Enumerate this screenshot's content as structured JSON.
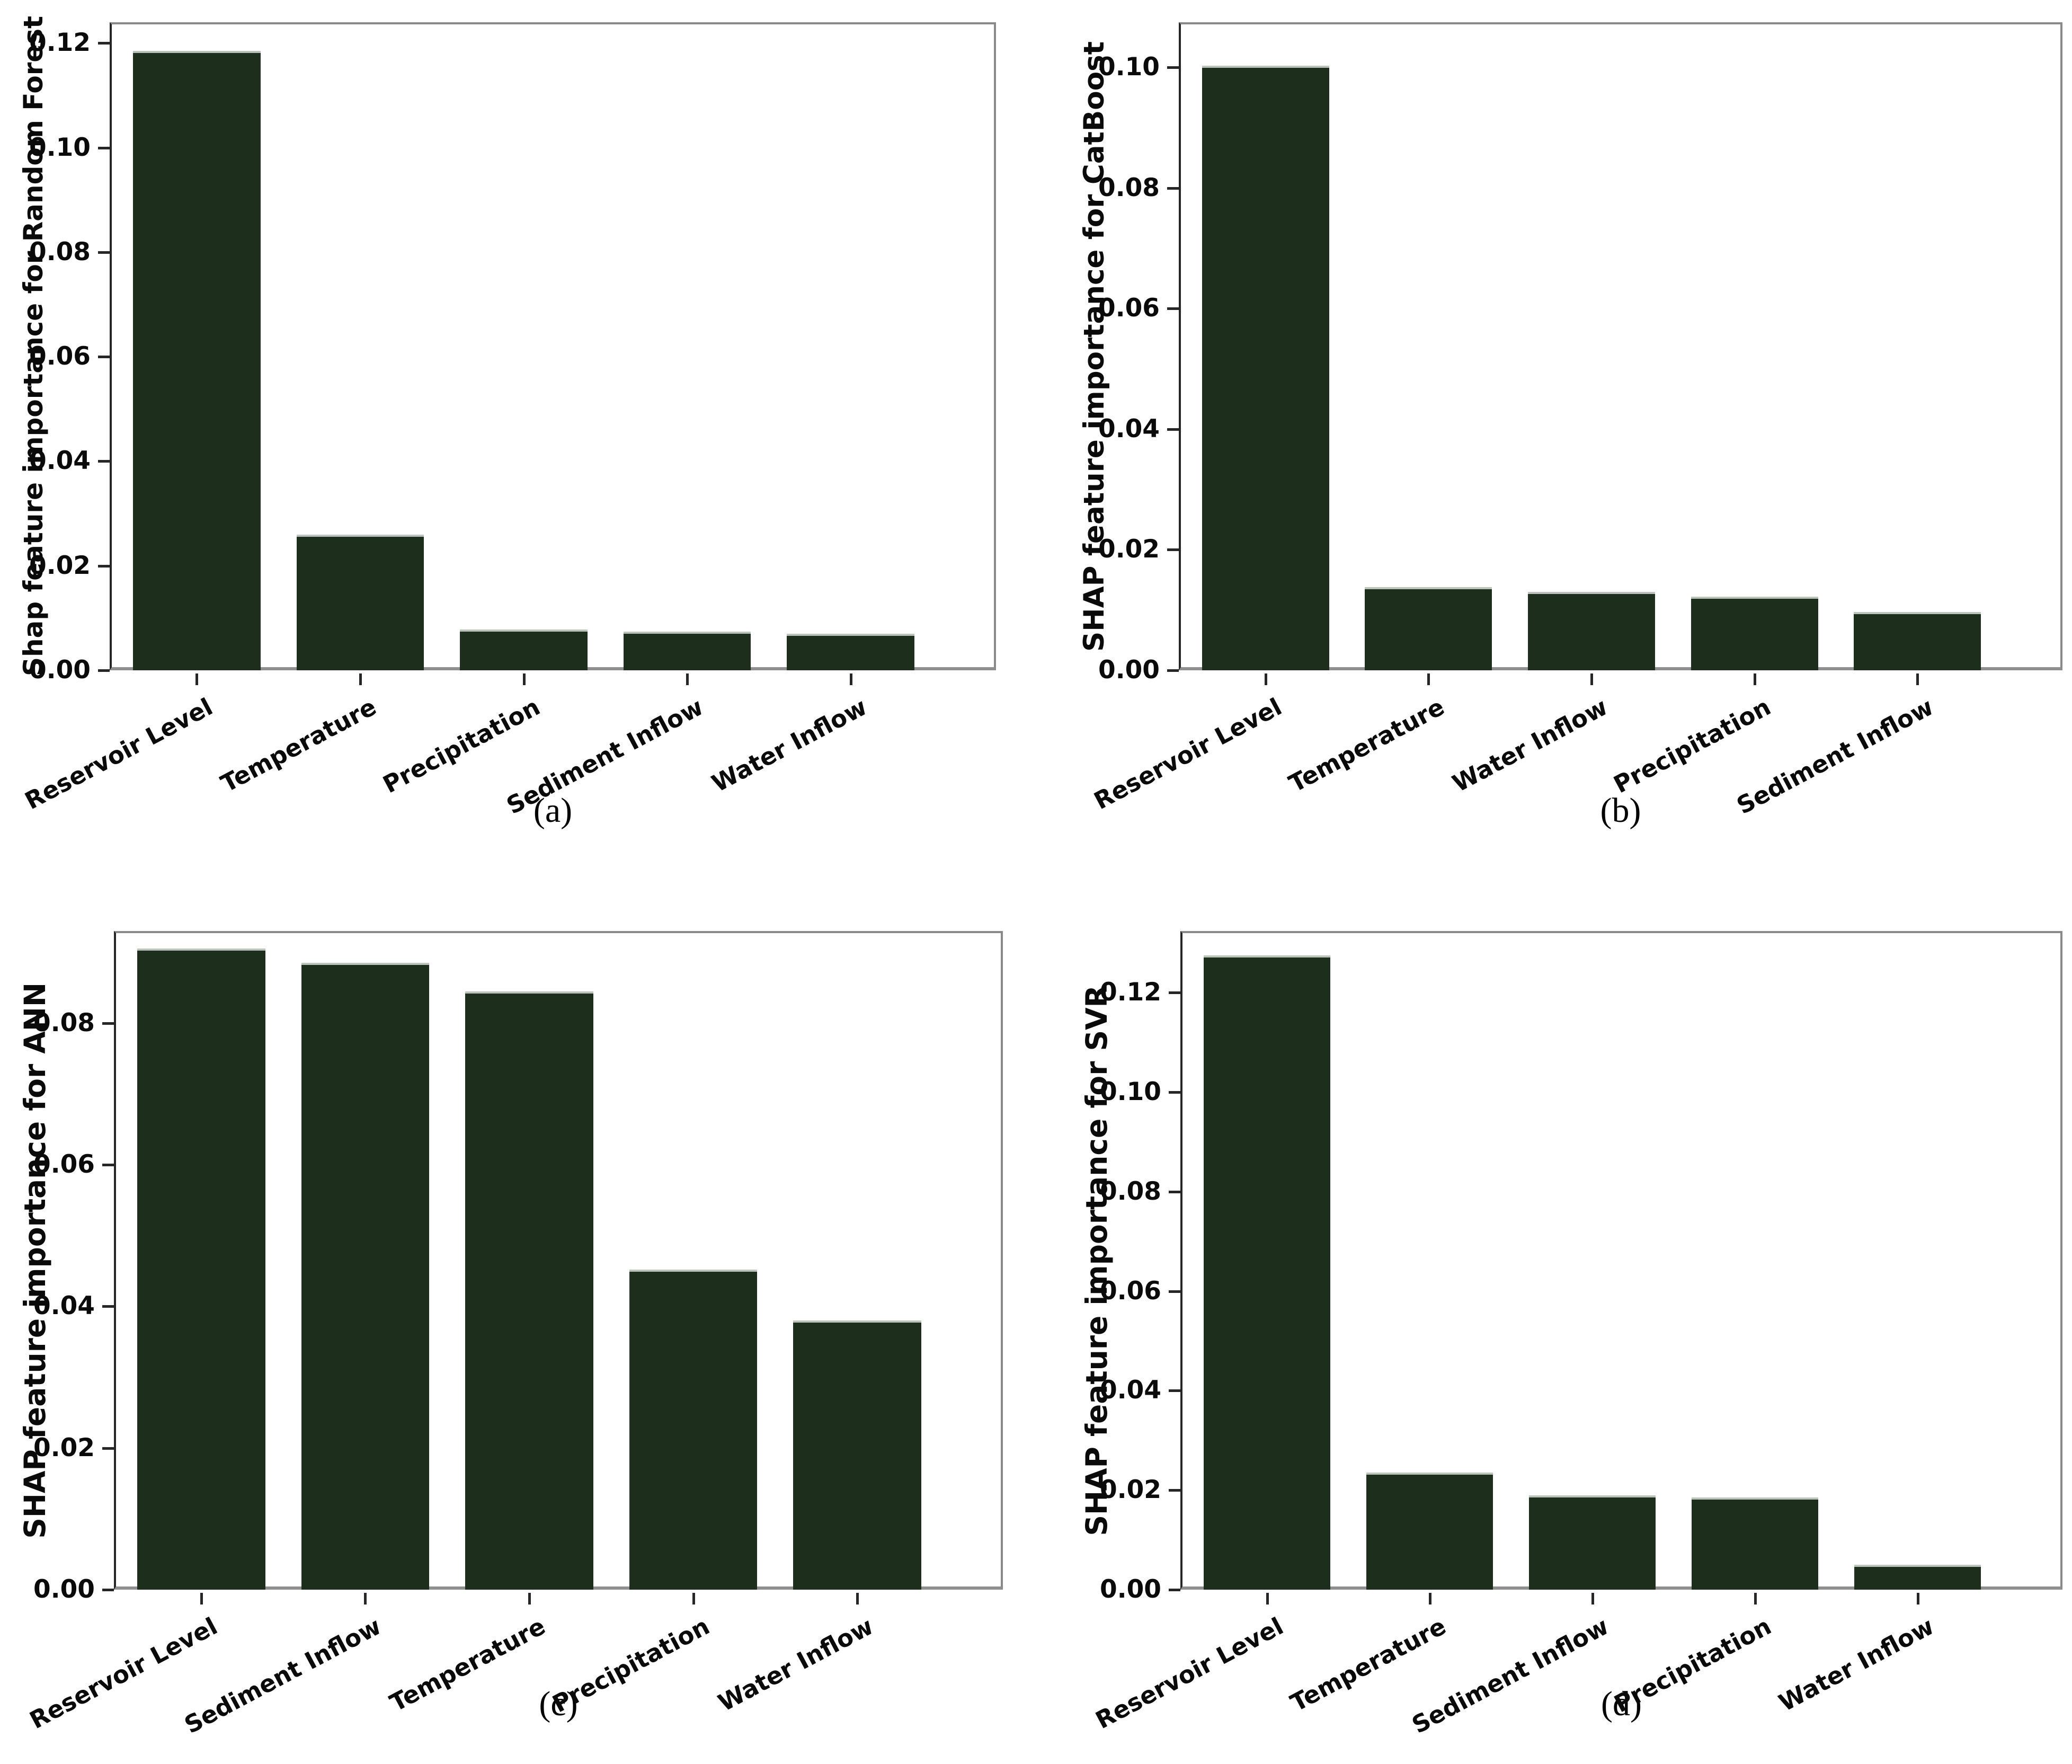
{
  "figure": {
    "background_color": "#ffffff",
    "bar_color": "#1e2e1d",
    "bar_edge_color": "#bcc3ba",
    "axis_color": "#262626",
    "baseline_color": "#8f8f8f",
    "text_color": "#0a0a0a"
  },
  "chart_data": [
    {
      "id": "a",
      "type": "bar",
      "caption": "(a)",
      "title": "",
      "xlabel": "",
      "ylabel": "Shap feature importance for Random Forest",
      "categories": [
        "Reservoir Level",
        "Temperature",
        "Precipitation",
        "Sediment Inflow",
        "Water Inflow"
      ],
      "values": [
        0.1185,
        0.026,
        0.0078,
        0.0074,
        0.007
      ],
      "yticks": [
        0.0,
        0.02,
        0.04,
        0.06,
        0.08,
        0.1,
        0.12
      ],
      "ylim": [
        0,
        0.124
      ],
      "tick_decimals": 2,
      "grid": false,
      "legend_position": "none",
      "xtick_rotation_deg": 28
    },
    {
      "id": "b",
      "type": "bar",
      "caption": "(b)",
      "title": "",
      "xlabel": "",
      "ylabel": "SHAP feature importance for CatBoost",
      "categories": [
        "Reservoir Level",
        "Temperature",
        "Water Inflow",
        "Precipitation",
        "Sediment Inflow"
      ],
      "values": [
        0.1003,
        0.0138,
        0.013,
        0.0122,
        0.0097
      ],
      "yticks": [
        0.0,
        0.02,
        0.04,
        0.06,
        0.08,
        0.1
      ],
      "ylim": [
        0,
        0.1075
      ],
      "tick_decimals": 2,
      "grid": false,
      "legend_position": "none",
      "xtick_rotation_deg": 28
    },
    {
      "id": "c",
      "type": "bar",
      "caption": "(c)",
      "title": "",
      "xlabel": "",
      "ylabel": "SHAP feature importance for ANN",
      "categories": [
        "Reservoir Level",
        "Sediment Inflow",
        "Temperature",
        "Precipitation",
        "Water Inflow"
      ],
      "values": [
        0.0905,
        0.0885,
        0.0845,
        0.0452,
        0.038
      ],
      "yticks": [
        0.0,
        0.02,
        0.04,
        0.06,
        0.08
      ],
      "ylim": [
        0,
        0.093
      ],
      "tick_decimals": 2,
      "grid": false,
      "legend_position": "none",
      "xtick_rotation_deg": 28
    },
    {
      "id": "d",
      "type": "bar",
      "caption": "(d)",
      "title": "",
      "xlabel": "",
      "ylabel": "SHAP feature importance for SVR",
      "categories": [
        "Reservoir Level",
        "Temperature",
        "Sediment Inflow",
        "Precipitation",
        "Water Inflow"
      ],
      "values": [
        0.1275,
        0.0235,
        0.019,
        0.0185,
        0.005
      ],
      "yticks": [
        0.0,
        0.02,
        0.04,
        0.06,
        0.08,
        0.1,
        0.12
      ],
      "ylim": [
        0,
        0.1324
      ],
      "tick_decimals": 2,
      "grid": false,
      "legend_position": "none",
      "xtick_rotation_deg": 28
    }
  ]
}
